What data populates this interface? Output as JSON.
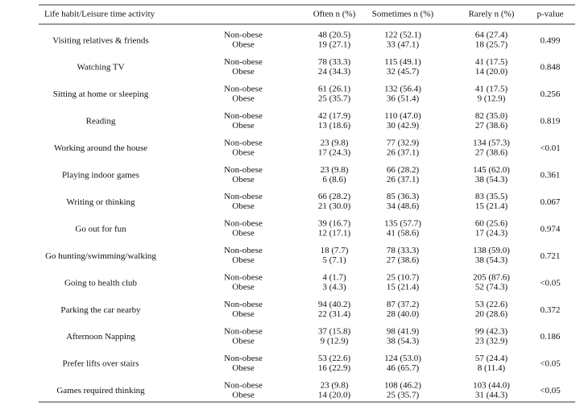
{
  "table": {
    "columns": [
      "Life habit/Leisure time activity",
      "Often n (%)",
      "Sometimes n (%)",
      "Rarely n (%)",
      "p-value"
    ],
    "groups": [
      {
        "activity": "Visiting relatives & friends",
        "p_value": "0.499",
        "rows": [
          [
            "Non-obese",
            "48 (20.5)",
            "122 (52.1)",
            "64 (27.4)"
          ],
          [
            "Obese",
            "19 (27.1)",
            "33 (47.1)",
            "18 (25.7)"
          ]
        ]
      },
      {
        "activity": "Watching TV",
        "p_value": "0.848",
        "rows": [
          [
            "Non-obese",
            "78 (33.3)",
            "115 (49.1)",
            "41 (17.5)"
          ],
          [
            "Obese",
            "24 (34.3)",
            "32 (45.7)",
            "14 (20.0)"
          ]
        ]
      },
      {
        "activity": "Sitting at home or sleeping",
        "p_value": "0.256",
        "rows": [
          [
            "Non-obese",
            "61 (26.1)",
            "132 (56.4)",
            "41 (17.5)"
          ],
          [
            "Obese",
            "25 (35.7)",
            "36 (51.4)",
            "9 (12.9)"
          ]
        ]
      },
      {
        "activity": "Reading",
        "p_value": "0.819",
        "rows": [
          [
            "Non-obese",
            "42 (17.9)",
            "110 (47.0)",
            "82 (35.0)"
          ],
          [
            "Obese",
            "13 (18.6)",
            "30 (42.9)",
            "27 (38.6)"
          ]
        ]
      },
      {
        "activity": "Working around the house",
        "p_value": "<0.01",
        "rows": [
          [
            "Non-obese",
            "23 (9.8)",
            "77 (32.9)",
            "134 (57.3)"
          ],
          [
            "Obese",
            "17 (24.3)",
            "26 (37.1)",
            "27 (38.6)"
          ]
        ]
      },
      {
        "activity": "Playing indoor games",
        "p_value": "0.361",
        "rows": [
          [
            "Non-obese",
            "23 (9.8)",
            "66 (28.2)",
            "145 (62.0)"
          ],
          [
            "Obese",
            "6 (8.6)",
            "26 (37.1)",
            "38 (54.3)"
          ]
        ]
      },
      {
        "activity": "Writing or thinking",
        "p_value": "0.067",
        "rows": [
          [
            "Non-obese",
            "66 (28.2)",
            "85 (36.3)",
            "83 (35.5)"
          ],
          [
            "Obese",
            "21 (30.0)",
            "34 (48.6)",
            "15 (21.4)"
          ]
        ]
      },
      {
        "activity": "Go out for fun",
        "p_value": "0.974",
        "rows": [
          [
            "Non-obese",
            "39 (16.7)",
            "135 (57.7)",
            "60 (25.6)"
          ],
          [
            "Obese",
            "12 (17.1)",
            "41 (58.6)",
            "17 (24.3)"
          ]
        ]
      },
      {
        "activity": "Go hunting/swimming/walking",
        "p_value": "0.721",
        "rows": [
          [
            "Non-obese",
            "18 (7.7)",
            "78 (33.3)",
            "138 (59.0)"
          ],
          [
            "Obese",
            "5 (7.1)",
            "27 (38.6)",
            "38 (54.3)"
          ]
        ]
      },
      {
        "activity": "Going to health club",
        "p_value": "<0.05",
        "rows": [
          [
            "Non-obese",
            "4 (1.7)",
            "25 (10.7)",
            "205 (87.6)"
          ],
          [
            "Obese",
            "3 (4.3)",
            "15 (21.4)",
            "52 (74.3)"
          ]
        ]
      },
      {
        "activity": "Parking the car nearby",
        "p_value": "0.372",
        "rows": [
          [
            "Non-obese",
            "94 (40.2)",
            "87 (37.2)",
            "53 (22.6)"
          ],
          [
            "Obese",
            "22 (31.4)",
            "28 (40.0)",
            "20 (28.6)"
          ]
        ]
      },
      {
        "activity": "Afternoon Napping",
        "p_value": "0.186",
        "rows": [
          [
            "Non-obese",
            "37 (15.8)",
            "98 (41.9)",
            "99 (42.3)"
          ],
          [
            "Obese",
            "9 (12.9)",
            "38 (54.3)",
            "23 (32.9)"
          ]
        ]
      },
      {
        "activity": "Prefer lifts over stairs",
        "p_value": "<0.05",
        "rows": [
          [
            "Non-obese",
            "53 (22.6)",
            "124 (53.0)",
            "57 (24.4)"
          ],
          [
            "Obese",
            "16 (22.9)",
            "46 (65.7)",
            "8 (11.4)"
          ]
        ]
      },
      {
        "activity": "Games required thinking",
        "p_value": "<0.05",
        "rows": [
          [
            "Non-obese",
            "23 (9.8)",
            "108 (46.2)",
            "103 (44.0)"
          ],
          [
            "Obese",
            "14 (20.0)",
            "25 (35.7)",
            "31 (44.3)"
          ]
        ]
      }
    ]
  }
}
